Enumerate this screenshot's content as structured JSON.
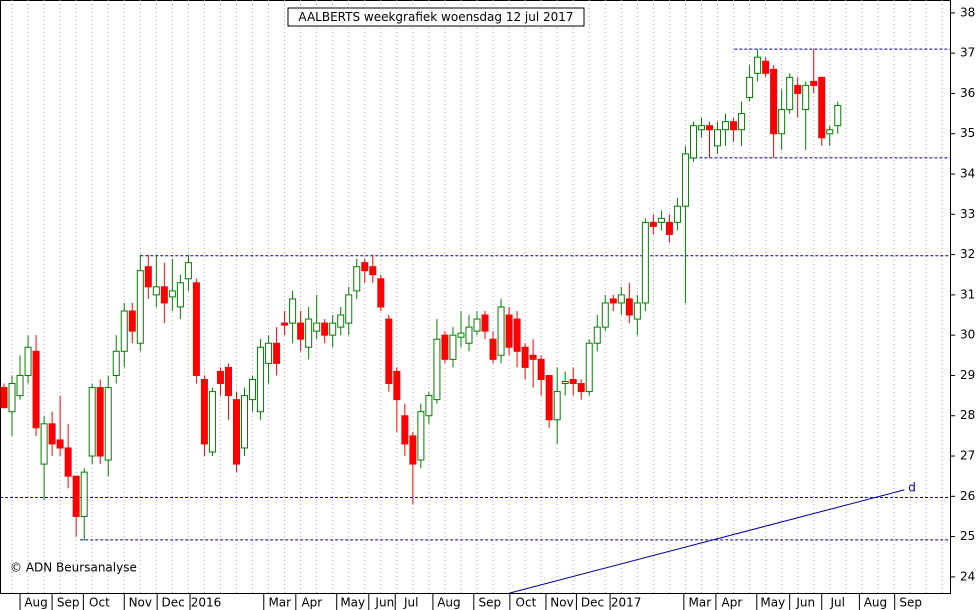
{
  "chart_data": {
    "type": "candlestick",
    "title": "AALBERTS weekgrafiek woensdag 12 jul 2017",
    "copyright": "© ADN Beursanalyse",
    "up_color": "#008000",
    "down_color": "#ff0000",
    "open": [
      28.7,
      28.1,
      28.5,
      29.0,
      29.6,
      26.8,
      27.8,
      27.4,
      27.2,
      26.5,
      25.5,
      27.0,
      28.7,
      26.9,
      29.0,
      29.6,
      30.6,
      29.8,
      31.7,
      31.0,
      31.2,
      30.95,
      30.7,
      31.4,
      31.3,
      28.9,
      27.1,
      29.1,
      29.2,
      28.4,
      27.2,
      28.4,
      28.1,
      29.3,
      29.8,
      30.3,
      30.3,
      30.3,
      29.7,
      30.1,
      30.3,
      30.0,
      30.2,
      30.3,
      31.1,
      31.8,
      31.7,
      31.4,
      30.4,
      29.1,
      28.0,
      27.5,
      26.9,
      28.0,
      28.4,
      30.0,
      29.4,
      29.95,
      29.8,
      30.1,
      30.5,
      29.9,
      29.5,
      30.5,
      30.4,
      29.7,
      29.5,
      29.4,
      29.0,
      27.9,
      28.8,
      28.9,
      28.8,
      28.6,
      29.8,
      30.2,
      30.9,
      30.8,
      30.9,
      30.4,
      30.8,
      32.8,
      32.8,
      32.8,
      32.8,
      33.2,
      34.4,
      35.1,
      35.2,
      34.7,
      35.1,
      35.3,
      35.1,
      35.9,
      36.5,
      36.8,
      36.6,
      35.0,
      35.6,
      36.2,
      35.6,
      36.3,
      36.4,
      35.0,
      35.2
    ],
    "high": [
      28.8,
      29.0,
      29.5,
      30.0,
      30.0,
      28.0,
      28.1,
      28.5,
      27.8,
      26.5,
      26.7,
      28.8,
      28.9,
      29.0,
      30.0,
      30.8,
      30.8,
      32.0,
      32.0,
      32.0,
      31.8,
      31.9,
      31.5,
      32.0,
      31.4,
      29.0,
      28.7,
      29.2,
      29.3,
      28.6,
      28.7,
      29.0,
      29.9,
      30.0,
      30.2,
      30.6,
      31.1,
      30.6,
      30.7,
      31.0,
      30.4,
      30.5,
      30.7,
      31.2,
      31.9,
      31.9,
      32.0,
      31.5,
      30.5,
      29.2,
      28.3,
      27.6,
      28.3,
      28.6,
      30.4,
      30.1,
      30.2,
      30.6,
      30.5,
      30.6,
      30.6,
      30.1,
      30.9,
      30.7,
      30.6,
      29.8,
      29.9,
      29.5,
      29.0,
      29.2,
      29.1,
      29.2,
      28.9,
      29.9,
      30.5,
      31.0,
      31.0,
      31.2,
      31.3,
      31.0,
      32.9,
      33.0,
      33.1,
      33.0,
      33.4,
      34.7,
      35.3,
      35.4,
      35.3,
      35.3,
      35.5,
      35.4,
      35.8,
      36.7,
      37.1,
      36.9,
      36.7,
      36.1,
      36.5,
      36.4,
      36.3,
      37.1,
      36.4,
      35.2,
      35.8
    ],
    "low": [
      28.2,
      27.5,
      28.4,
      28.8,
      27.5,
      25.9,
      27.0,
      27.0,
      26.2,
      25.0,
      24.9,
      26.8,
      26.8,
      26.5,
      28.8,
      29.2,
      29.8,
      29.6,
      30.9,
      30.7,
      30.3,
      30.6,
      30.4,
      31.1,
      28.8,
      27.0,
      27.0,
      28.5,
      27.9,
      26.6,
      27.0,
      28.1,
      27.9,
      28.8,
      29.0,
      30.0,
      29.8,
      29.6,
      29.4,
      29.9,
      29.8,
      29.7,
      30.0,
      30.0,
      30.9,
      31.3,
      31.3,
      30.6,
      28.6,
      27.6,
      27.0,
      25.8,
      26.7,
      27.8,
      28.3,
      29.3,
      29.2,
      29.7,
      29.6,
      30.0,
      29.9,
      29.3,
      29.3,
      29.5,
      29.2,
      28.9,
      28.7,
      28.5,
      27.7,
      27.3,
      28.5,
      28.5,
      28.4,
      28.5,
      29.6,
      30.1,
      30.6,
      30.5,
      30.3,
      30.0,
      30.6,
      32.5,
      32.6,
      32.3,
      32.6,
      30.8,
      34.3,
      34.9,
      34.4,
      34.5,
      34.7,
      34.8,
      34.7,
      35.8,
      36.3,
      36.4,
      34.4,
      34.6,
      35.5,
      35.4,
      34.6,
      36.0,
      34.7,
      34.7,
      35.0
    ],
    "close": [
      28.2,
      28.8,
      29.0,
      29.7,
      27.7,
      27.8,
      27.3,
      27.2,
      26.5,
      25.5,
      26.6,
      28.7,
      27.0,
      28.7,
      29.6,
      30.6,
      30.1,
      31.6,
      31.2,
      31.2,
      30.8,
      31.1,
      31.3,
      31.8,
      29.0,
      27.3,
      28.6,
      28.8,
      28.5,
      26.8,
      28.5,
      28.9,
      29.7,
      29.8,
      29.3,
      30.25,
      30.9,
      29.9,
      30.4,
      30.3,
      30.0,
      30.3,
      30.5,
      31.0,
      31.7,
      31.6,
      31.5,
      30.7,
      28.8,
      28.4,
      27.3,
      26.8,
      28.1,
      28.5,
      29.9,
      29.4,
      30.0,
      30.05,
      30.2,
      30.4,
      30.1,
      29.4,
      30.7,
      29.7,
      29.6,
      29.2,
      29.4,
      28.9,
      27.9,
      28.6,
      28.85,
      28.8,
      28.6,
      29.8,
      30.2,
      30.8,
      30.8,
      31.0,
      30.5,
      30.8,
      32.8,
      32.7,
      32.9,
      32.5,
      33.2,
      34.5,
      35.2,
      35.2,
      35.1,
      35.1,
      35.3,
      35.1,
      35.5,
      36.4,
      36.9,
      36.5,
      35.0,
      35.6,
      36.4,
      36.0,
      36.2,
      36.2,
      34.9,
      35.1,
      35.7
    ],
    "xlim": [
      -0.5,
      118.0
    ],
    "xticks": [
      {
        "value": 2.0,
        "label": "Aug"
      },
      {
        "value": 6.0,
        "label": "Sep"
      },
      {
        "value": 9.9,
        "label": "Oct"
      },
      {
        "value": 15.0,
        "label": "Nov"
      },
      {
        "value": 19.1,
        "label": "Dec"
      },
      {
        "value": 23.2,
        "label": "2016"
      },
      {
        "value": 32.4,
        "label": "Mar"
      },
      {
        "value": 36.4,
        "label": "Apr"
      },
      {
        "value": 41.5,
        "label": "May"
      },
      {
        "value": 45.5,
        "label": "Jun"
      },
      {
        "value": 48.8,
        "label": "Jul"
      },
      {
        "value": 53.5,
        "label": "Aug"
      },
      {
        "value": 58.6,
        "label": "Sep"
      },
      {
        "value": 63.1,
        "label": "Oct"
      },
      {
        "value": 67.6,
        "label": "Nov"
      },
      {
        "value": 71.4,
        "label": "Dec"
      },
      {
        "value": 75.6,
        "label": "2017"
      },
      {
        "value": 84.8,
        "label": "Mar"
      },
      {
        "value": 88.8,
        "label": "Apr"
      },
      {
        "value": 93.9,
        "label": "May"
      },
      {
        "value": 98.0,
        "label": "Jun"
      },
      {
        "value": 102.0,
        "label": "Jul"
      },
      {
        "value": 106.7,
        "label": "Aug"
      },
      {
        "value": 111.1,
        "label": "Sep"
      }
    ],
    "ylim": [
      23.6,
      38.32
    ],
    "yticks": [
      24,
      25,
      26,
      27,
      28,
      29,
      30,
      31,
      32,
      33,
      34,
      35,
      36,
      37,
      38
    ],
    "hlines": [
      {
        "value": 37.1,
        "start": 91.1
      },
      {
        "value": 34.4,
        "start": 85.5
      },
      {
        "value": 31.97,
        "start": 17.0
      },
      {
        "value": 25.97,
        "start": -0.5
      },
      {
        "value": 24.92,
        "start": 9.5
      }
    ],
    "trendline": {
      "label": "d",
      "x": [
        63.1,
        112.3
      ],
      "y": [
        23.6,
        26.16
      ]
    },
    "line_color": "#0000aa",
    "xgrid": true
  }
}
